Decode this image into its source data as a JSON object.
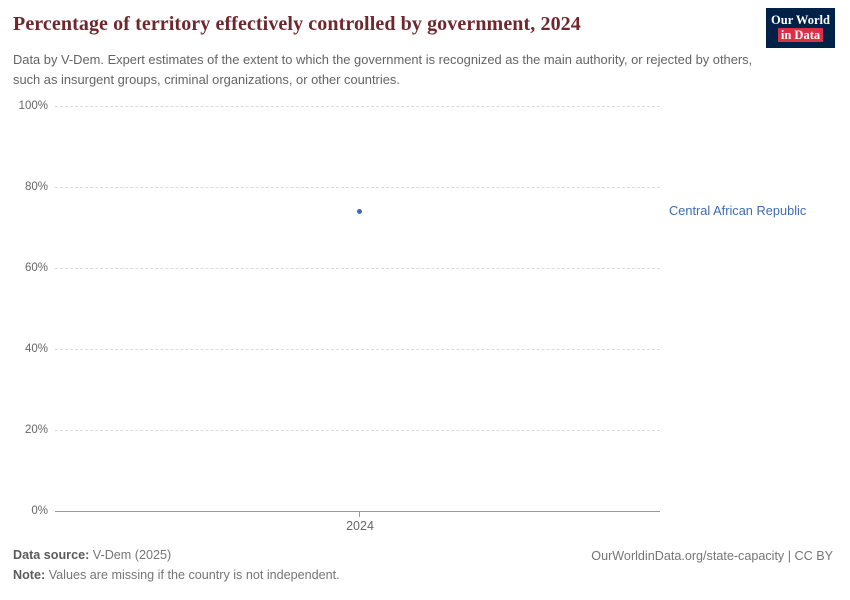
{
  "header": {
    "title": "Percentage of territory effectively controlled by government, 2024",
    "subtitle": "Data by V-Dem. Expert estimates of the extent to which the government is recognized as the main authority, or rejected by others, such as insurgent groups, criminal organizations, or other countries.",
    "logo": {
      "line1": "Our World",
      "line2": "in Data"
    }
  },
  "chart_data": {
    "type": "scatter",
    "title": "Percentage of territory effectively controlled by government, 2024",
    "xlabel": "",
    "ylabel": "",
    "ylim": [
      0,
      100
    ],
    "grid": "dashed-horizontal",
    "legend_position": "right-of-point",
    "x_ticks": [
      "2024"
    ],
    "y_ticks": [
      {
        "value": 100,
        "label": "100%"
      },
      {
        "value": 80,
        "label": "80%"
      },
      {
        "value": 60,
        "label": "60%"
      },
      {
        "value": 40,
        "label": "40%"
      },
      {
        "value": 20,
        "label": "20%"
      },
      {
        "value": 0,
        "label": "0%"
      }
    ],
    "series": [
      {
        "name": "Central African Republic",
        "x": 2024,
        "y": 74,
        "color": "#3d6cb3"
      }
    ]
  },
  "footer": {
    "source_label": "Data source:",
    "source_value": "V-Dem (2025)",
    "note_label": "Note:",
    "note_value": "Values are missing if the country is not independent.",
    "link": "OurWorldinData.org/state-capacity | CC BY"
  },
  "colors": {
    "title": "#6e282d",
    "subtitle": "#646464",
    "gridline": "#dcdcdc",
    "axis": "#9a9a9a",
    "tick_text": "#666666",
    "logo_navy": "#002147",
    "logo_red": "#dc2e45",
    "point_blue": "#3d6cb3"
  }
}
